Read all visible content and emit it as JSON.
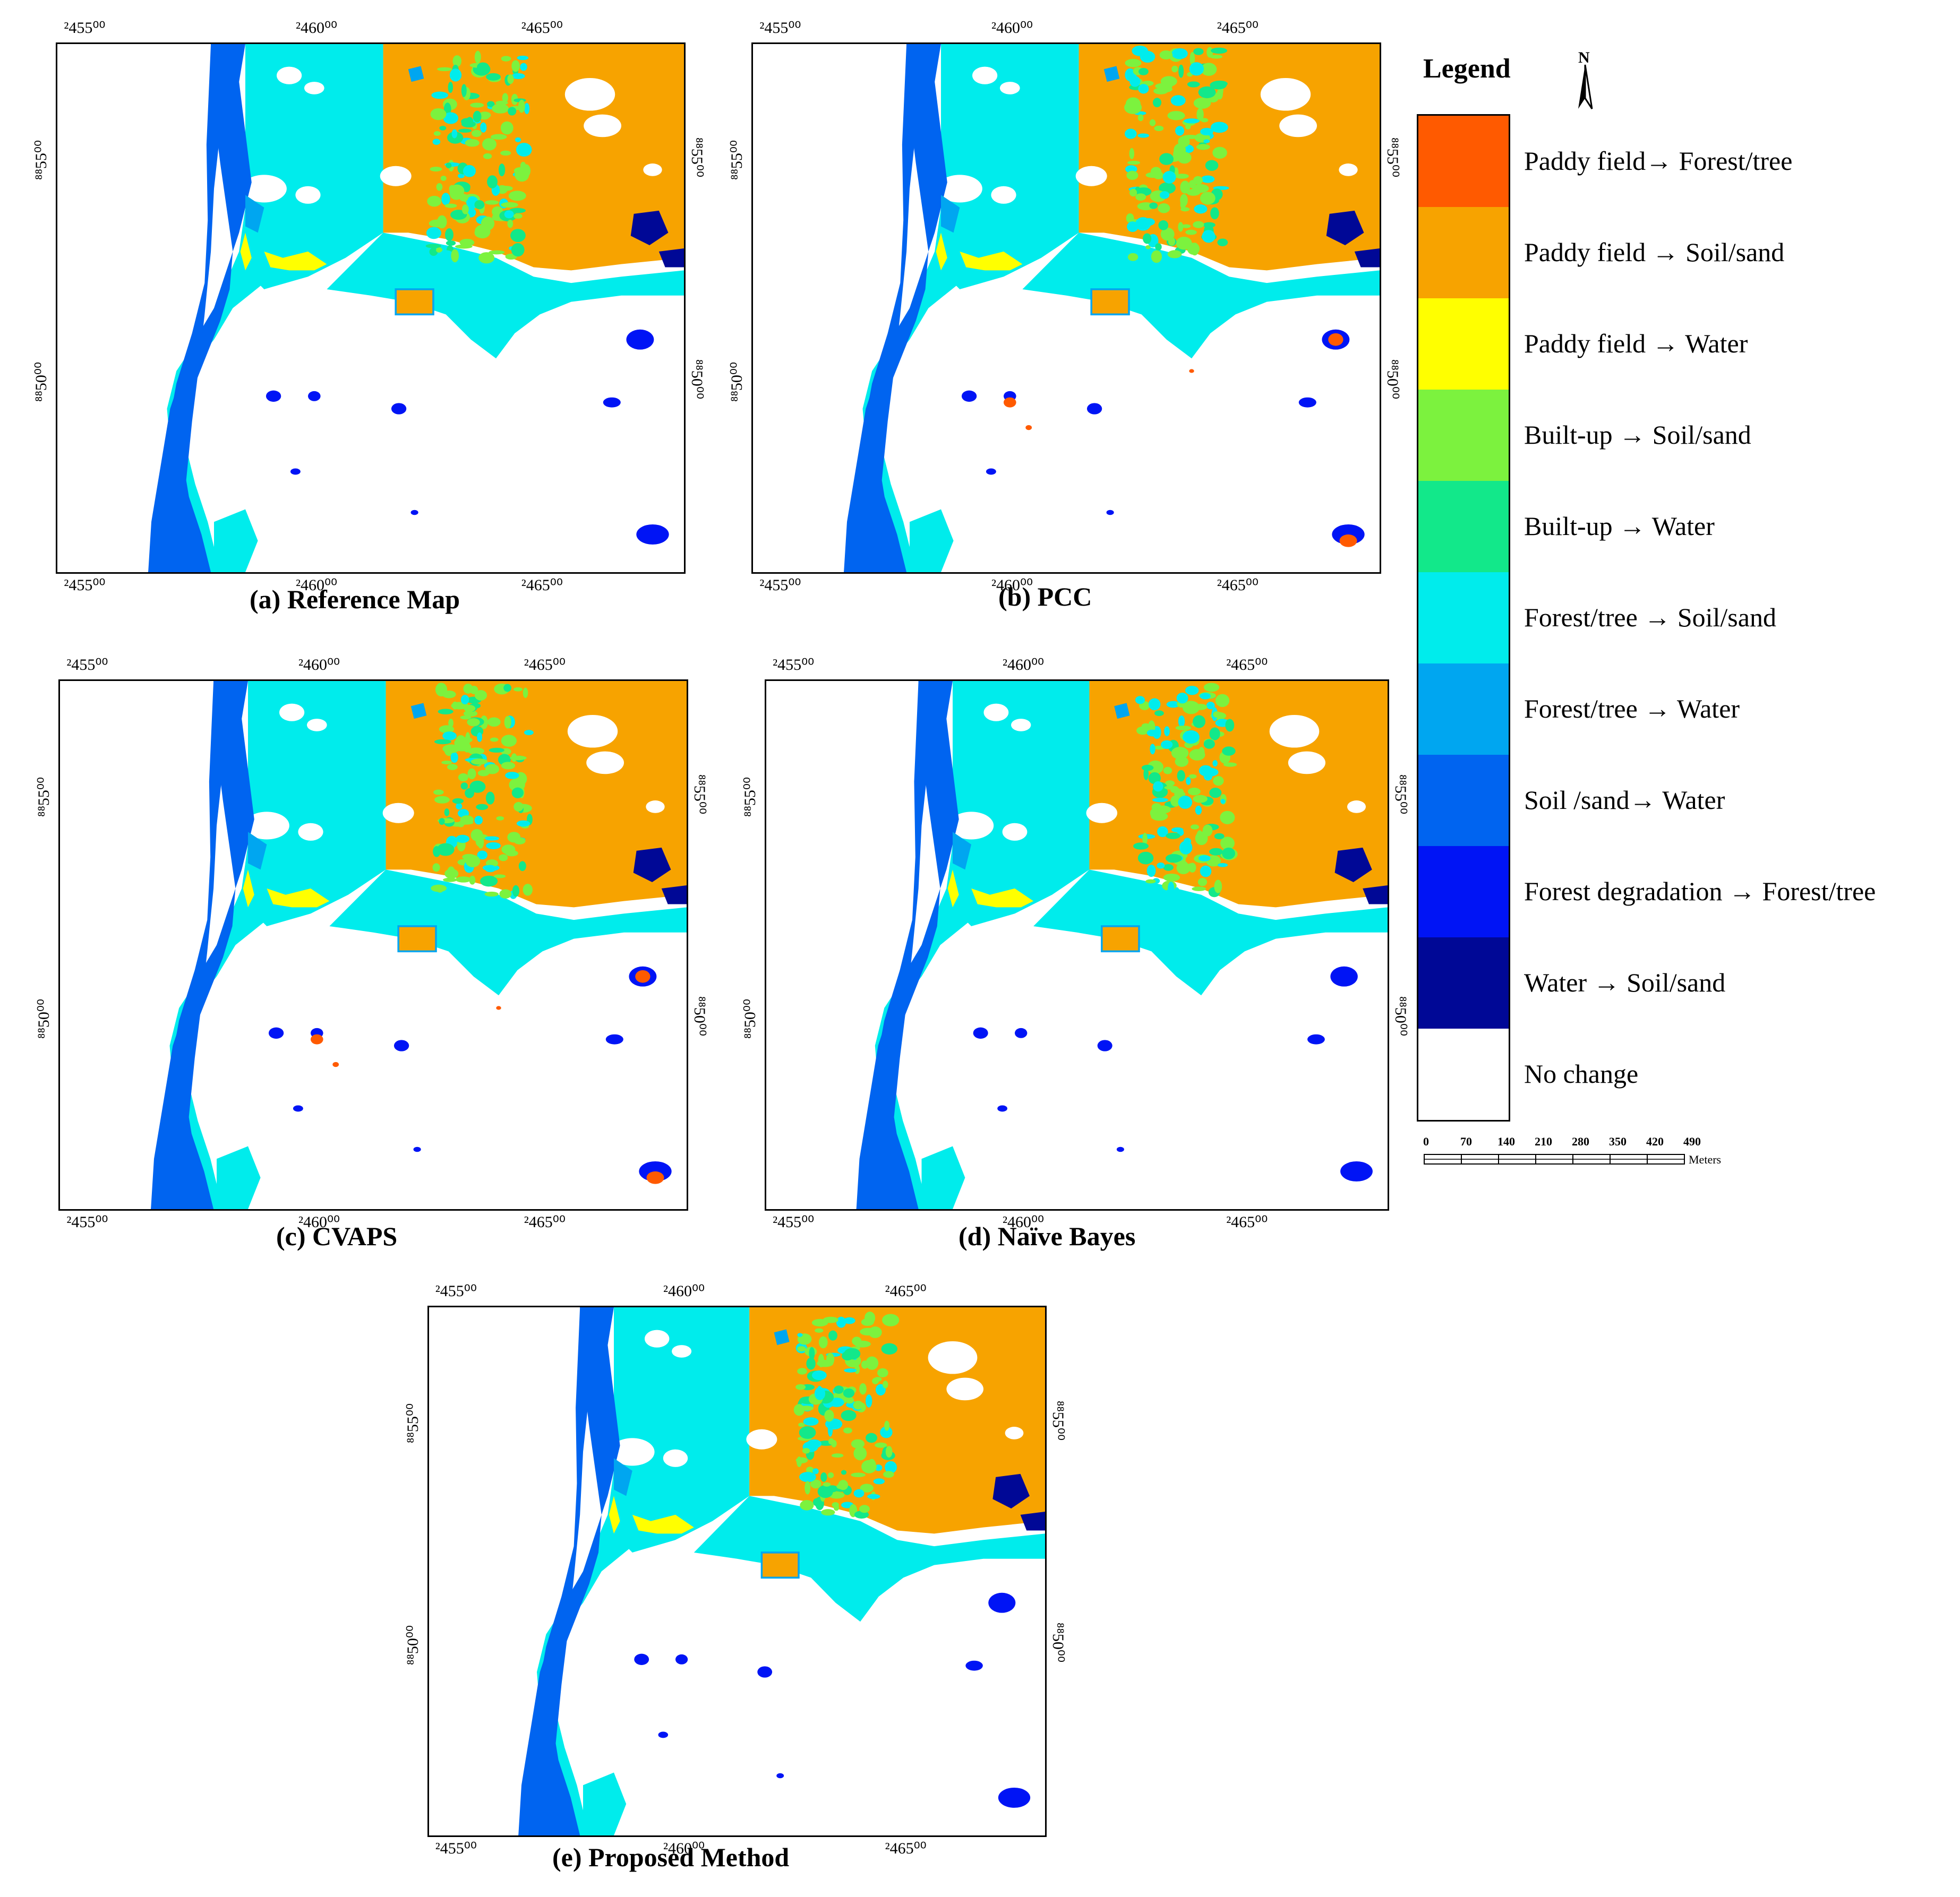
{
  "colors": {
    "paddy_forest": "#ff5a00",
    "paddy_soil": "#f7a300",
    "paddy_water": "#ffff00",
    "builtup_soil": "#7cf23e",
    "builtup_water": "#12e88a",
    "forest_soil": "#00ecec",
    "forest_water": "#00a6f0",
    "soil_water": "#0064f0",
    "forestdeg_forest": "#0014f5",
    "water_soil": "#000896",
    "no_change": "#ffffff"
  },
  "ticks": {
    "x": [
      "²455⁰⁰",
      "²460⁰⁰",
      "²465⁰⁰"
    ],
    "y": [
      "⁸⁸55⁰⁰",
      "⁸⁸50⁰⁰"
    ]
  },
  "panels": [
    {
      "caption": "(a) Reference Map"
    },
    {
      "caption": "(b) PCC"
    },
    {
      "caption": "(c) CVAPS"
    },
    {
      "caption": "(d) Naïve Bayes"
    },
    {
      "caption": "(e) Proposed Method"
    }
  ],
  "legend": {
    "title": "Legend",
    "north_label": "N",
    "items": [
      {
        "label": "Paddy field→ Forest/tree",
        "color": "#ff5a00"
      },
      {
        "label": "Paddy field → Soil/sand",
        "color": "#f7a300"
      },
      {
        "label": "Paddy field → Water",
        "color": "#ffff00"
      },
      {
        "label": "Built-up → Soil/sand",
        "color": "#7cf23e"
      },
      {
        "label": "Built-up → Water",
        "color": "#12e88a"
      },
      {
        "label": "Forest/tree → Soil/sand",
        "color": "#00ecec"
      },
      {
        "label": "Forest/tree → Water",
        "color": "#00a6f0"
      },
      {
        "label": "Soil /sand→ Water",
        "color": "#0064f0"
      },
      {
        "label": "Forest degradation → Forest/tree",
        "color": "#0014f5"
      },
      {
        "label": "Water → Soil/sand",
        "color": "#000896"
      },
      {
        "label": "No change",
        "color": "#ffffff"
      }
    ],
    "scale": {
      "values": [
        "0",
        "70",
        "140",
        "210",
        "280",
        "350",
        "420",
        "490"
      ],
      "unit": "Meters"
    }
  }
}
